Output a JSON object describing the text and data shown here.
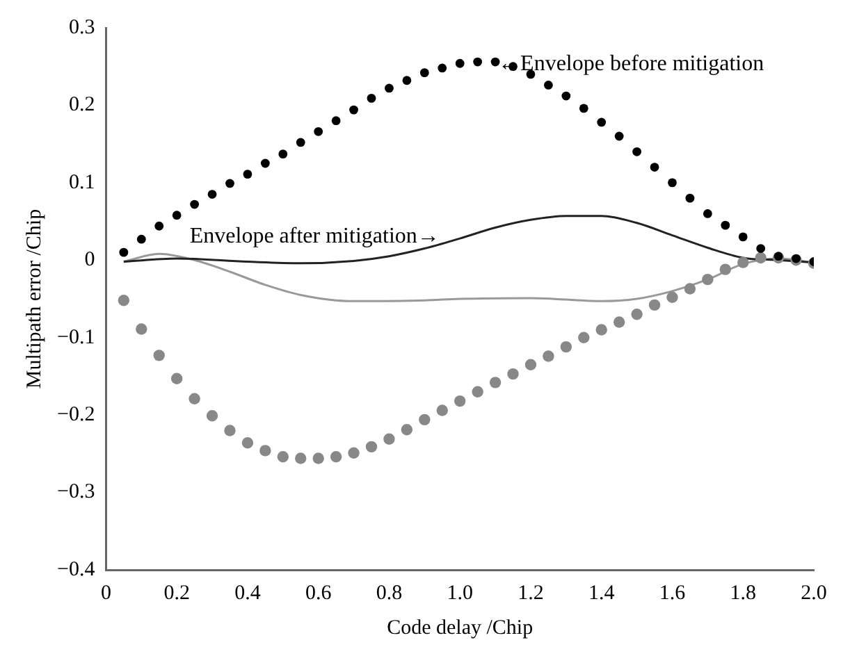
{
  "chart_data": {
    "type": "line",
    "xlabel": "Code delay /Chip",
    "ylabel": "Multipath error /Chip",
    "xlim": [
      0,
      2.0
    ],
    "xticks": [
      0,
      {
        "value": 0.2,
        "label": "0.2"
      },
      {
        "value": 0.4,
        "label": "0.4"
      },
      {
        "value": 0.6,
        "label": "0.6"
      },
      {
        "value": 0.8,
        "label": "0.8"
      },
      {
        "value": 1.0,
        "label": "1.0"
      },
      {
        "value": 1.2,
        "label": "1.2"
      },
      {
        "value": 1.4,
        "label": "1.4"
      },
      {
        "value": 1.6,
        "label": "1.6"
      },
      {
        "value": 1.8,
        "label": "1.8"
      },
      {
        "value": 2.0,
        "label": "2.0"
      }
    ],
    "ylim": [
      -0.4,
      0.3
    ],
    "yticks": [
      {
        "value": -0.4,
        "label": "−0.4"
      },
      {
        "value": -0.3,
        "label": "−0.3"
      },
      {
        "value": -0.2,
        "label": "−0.2"
      },
      {
        "value": -0.1,
        "label": "−0.1"
      },
      0,
      0.1,
      0.2,
      0.3
    ],
    "grid": false,
    "legend": false,
    "series": [
      {
        "type": "scatter",
        "marker": "circle",
        "color": "#000000",
        "x": [
          0.05,
          0.1,
          0.15,
          0.2,
          0.25,
          0.3,
          0.35,
          0.4,
          0.45,
          0.5,
          0.55,
          0.6,
          0.65,
          0.7,
          0.75,
          0.8,
          0.85,
          0.9,
          0.95,
          1.0,
          1.05,
          1.1,
          1.15,
          1.2,
          1.25,
          1.3,
          1.35,
          1.4,
          1.45,
          1.5,
          1.55,
          1.6,
          1.65,
          1.7,
          1.75,
          1.8,
          1.85,
          1.9,
          1.95,
          2.0
        ],
        "values": [
          0.01,
          0.027,
          0.044,
          0.058,
          0.072,
          0.085,
          0.099,
          0.111,
          0.125,
          0.137,
          0.152,
          0.166,
          0.18,
          0.194,
          0.209,
          0.222,
          0.232,
          0.242,
          0.248,
          0.254,
          0.256,
          0.256,
          0.25,
          0.24,
          0.226,
          0.212,
          0.196,
          0.178,
          0.16,
          0.14,
          0.12,
          0.1,
          0.08,
          0.06,
          0.045,
          0.03,
          0.015,
          0.005,
          0.002,
          -0.002
        ]
      },
      {
        "type": "scatter",
        "marker": "circle",
        "color": "#888888",
        "x": [
          0.05,
          0.1,
          0.15,
          0.2,
          0.25,
          0.3,
          0.35,
          0.4,
          0.45,
          0.5,
          0.55,
          0.6,
          0.65,
          0.7,
          0.75,
          0.8,
          0.85,
          0.9,
          0.95,
          1.0,
          1.05,
          1.1,
          1.15,
          1.2,
          1.25,
          1.3,
          1.35,
          1.4,
          1.45,
          1.5,
          1.55,
          1.6,
          1.65,
          1.7,
          1.75,
          1.8,
          1.85,
          1.9,
          1.95,
          2.0
        ],
        "values": [
          -0.052,
          -0.089,
          -0.123,
          -0.153,
          -0.179,
          -0.201,
          -0.22,
          -0.236,
          -0.246,
          -0.254,
          -0.256,
          -0.256,
          -0.254,
          -0.249,
          -0.241,
          -0.231,
          -0.219,
          -0.206,
          -0.194,
          -0.182,
          -0.17,
          -0.158,
          -0.147,
          -0.135,
          -0.124,
          -0.112,
          -0.1,
          -0.09,
          -0.08,
          -0.07,
          -0.058,
          -0.048,
          -0.037,
          -0.025,
          -0.012,
          -0.003,
          0.003,
          0.003,
          0,
          -0.004
        ]
      },
      {
        "marker": "none",
        "line_style": "solid",
        "color": "#222222",
        "x": [
          0.05,
          0.2,
          0.4,
          0.55,
          0.7,
          0.8,
          0.9,
          1.0,
          1.1,
          1.2,
          1.3,
          1.4,
          1.5,
          1.6,
          1.7,
          1.8,
          1.9,
          2.0
        ],
        "values": [
          -0.002,
          0.002,
          -0.002,
          -0.004,
          -0.001,
          0.005,
          0.015,
          0.028,
          0.042,
          0.052,
          0.057,
          0.057,
          0.048,
          0.032,
          0.016,
          0.003,
          0,
          -0.003
        ]
      },
      {
        "marker": "none",
        "line_style": "solid",
        "color": "#999999",
        "x": [
          0.05,
          0.15,
          0.25,
          0.35,
          0.45,
          0.55,
          0.7,
          0.9,
          1.0,
          1.2,
          1.4,
          1.5,
          1.6,
          1.7,
          1.8,
          1.9,
          2.0
        ],
        "values": [
          -0.002,
          0.008,
          0,
          -0.015,
          -0.032,
          -0.045,
          -0.053,
          -0.052,
          -0.05,
          -0.049,
          -0.053,
          -0.05,
          -0.04,
          -0.025,
          -0.005,
          0.002,
          -0.003
        ]
      }
    ],
    "annotations": [
      {
        "text": "←Envelope before mitigation",
        "x": 1.1,
        "y": 0.256
      },
      {
        "text": "Envelope after mitigation→",
        "x": 0.95,
        "y": 0.03
      }
    ]
  }
}
